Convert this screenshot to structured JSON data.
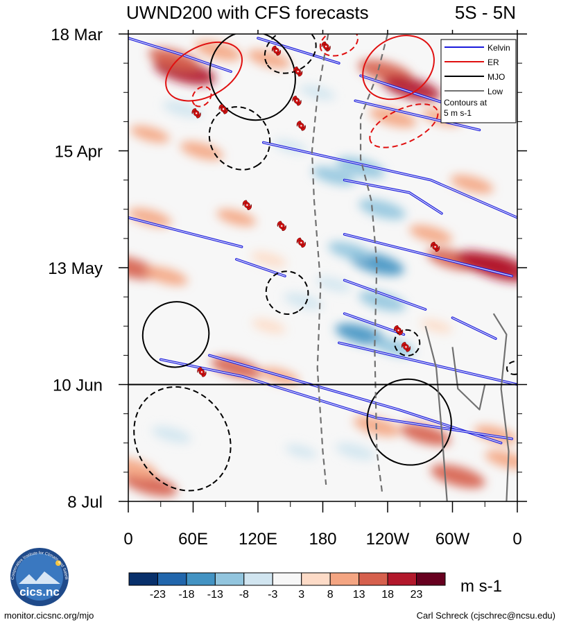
{
  "chart_data": {
    "type": "heatmap",
    "title": "UWND200 with CFS forecasts",
    "region": "5S - 5N",
    "x_ticks": [
      "0",
      "60E",
      "120E",
      "180",
      "120W",
      "60W",
      "0"
    ],
    "x_tick_lon": [
      0,
      60,
      120,
      180,
      240,
      300,
      360
    ],
    "xlim": [
      0,
      360
    ],
    "y_ticks": [
      "18 Mar",
      "15 Apr",
      "13 May",
      "10 Jun",
      "8 Jul"
    ],
    "y_tick_day": [
      0,
      28,
      56,
      84,
      112
    ],
    "ylim": [
      0,
      112
    ],
    "forecast_start_day": 84,
    "colorbar": {
      "units": "m s-1",
      "labels": [
        "-23",
        "-18",
        "-13",
        "-8",
        "-3",
        "3",
        "8",
        "13",
        "18",
        "23"
      ],
      "colors": [
        "#08306b",
        "#2166ac",
        "#4393c3",
        "#92c5de",
        "#d1e5f0",
        "#f7f7f7",
        "#fddbc7",
        "#f4a582",
        "#d6604d",
        "#b2182b",
        "#67001f"
      ]
    },
    "legend": {
      "position": "top-right",
      "entries": [
        {
          "name": "Kelvin",
          "color": "#1a1adb",
          "style": "solid"
        },
        {
          "name": "ER",
          "color": "#e01010",
          "style": "solid"
        },
        {
          "name": "MJO",
          "color": "#000000",
          "style": "solid"
        },
        {
          "name": "Low",
          "color": "#707070",
          "style": "solid"
        }
      ],
      "note": [
        "Contours at",
        "5 m s-1"
      ]
    },
    "anomaly_patches": [
      {
        "lon": 52,
        "day": 9,
        "value": 20
      },
      {
        "lon": 42,
        "day": 6,
        "value": 14
      },
      {
        "lon": 83,
        "day": 4,
        "value": 12
      },
      {
        "lon": 130,
        "day": 6,
        "value": 10
      },
      {
        "lon": 175,
        "day": 14,
        "value": -6
      },
      {
        "lon": 238,
        "day": 9,
        "value": 16
      },
      {
        "lon": 262,
        "day": 13,
        "value": 18
      },
      {
        "lon": 245,
        "day": 20,
        "value": 12
      },
      {
        "lon": 290,
        "day": 20,
        "value": 8
      },
      {
        "lon": 50,
        "day": 18,
        "value": -8
      },
      {
        "lon": 20,
        "day": 24,
        "value": 8
      },
      {
        "lon": 68,
        "day": 28,
        "value": 10
      },
      {
        "lon": 190,
        "day": 34,
        "value": -10
      },
      {
        "lon": 215,
        "day": 32,
        "value": -13
      },
      {
        "lon": 235,
        "day": 42,
        "value": -12
      },
      {
        "lon": 150,
        "day": 27,
        "value": -5
      },
      {
        "lon": 318,
        "day": 36,
        "value": 10
      },
      {
        "lon": 20,
        "day": 44,
        "value": 10
      },
      {
        "lon": 300,
        "day": 54,
        "value": 14
      },
      {
        "lon": 345,
        "day": 56,
        "value": 22
      },
      {
        "lon": 330,
        "day": 55,
        "value": 18
      },
      {
        "lon": 2,
        "day": 56,
        "value": 16
      },
      {
        "lon": 35,
        "day": 58,
        "value": 10
      },
      {
        "lon": 130,
        "day": 54,
        "value": 6
      },
      {
        "lon": 230,
        "day": 55,
        "value": -16
      },
      {
        "lon": 205,
        "day": 52,
        "value": -10
      },
      {
        "lon": 235,
        "day": 64,
        "value": -12
      },
      {
        "lon": 215,
        "day": 72,
        "value": -14
      },
      {
        "lon": 245,
        "day": 75,
        "value": -10
      },
      {
        "lon": 100,
        "day": 80,
        "value": 14
      },
      {
        "lon": 140,
        "day": 82,
        "value": 8
      },
      {
        "lon": 230,
        "day": 94,
        "value": 12
      },
      {
        "lon": 275,
        "day": 96,
        "value": 14
      },
      {
        "lon": 340,
        "day": 96,
        "value": 10
      },
      {
        "lon": 20,
        "day": 108,
        "value": 16
      },
      {
        "lon": 5,
        "day": 104,
        "value": 12
      },
      {
        "lon": 305,
        "day": 106,
        "value": 16
      },
      {
        "lon": 350,
        "day": 102,
        "value": 10
      },
      {
        "lon": 40,
        "day": 96,
        "value": -8
      },
      {
        "lon": 210,
        "day": 100,
        "value": -8
      },
      {
        "lon": 160,
        "day": 100,
        "value": -4
      },
      {
        "lon": 190,
        "day": 60,
        "value": -6
      },
      {
        "lon": 162,
        "day": 64,
        "value": -8
      },
      {
        "lon": 280,
        "day": 48,
        "value": 10
      },
      {
        "lon": 100,
        "day": 44,
        "value": 8
      },
      {
        "lon": 130,
        "day": 70,
        "value": 5
      },
      {
        "lon": 285,
        "day": 70,
        "value": 4
      }
    ],
    "kelvin_contours": [
      [
        [
          0,
          1
        ],
        [
          50,
          5
        ],
        [
          95,
          9
        ]
      ],
      [
        [
          120,
          1
        ],
        [
          195,
          7
        ]
      ],
      [
        [
          215,
          10
        ],
        [
          345,
          21
        ]
      ],
      [
        [
          210,
          16
        ],
        [
          325,
          23
        ]
      ],
      [
        [
          125,
          26
        ],
        [
          280,
          35
        ],
        [
          360,
          44
        ]
      ],
      [
        [
          200,
          35
        ],
        [
          260,
          38
        ],
        [
          290,
          43
        ]
      ],
      [
        [
          0,
          44
        ],
        [
          105,
          51
        ]
      ],
      [
        [
          200,
          48
        ],
        [
          355,
          58
        ]
      ],
      [
        [
          100,
          54
        ],
        [
          145,
          58
        ]
      ],
      [
        [
          200,
          59
        ],
        [
          275,
          66
        ]
      ],
      [
        [
          200,
          67
        ],
        [
          255,
          72
        ]
      ],
      [
        [
          195,
          74
        ],
        [
          360,
          84
        ]
      ],
      [
        [
          300,
          68
        ],
        [
          340,
          73
        ]
      ],
      [
        [
          75,
          77
        ],
        [
          250,
          90
        ],
        [
          345,
          98
        ]
      ],
      [
        [
          30,
          78
        ],
        [
          105,
          82
        ],
        [
          230,
          92
        ],
        [
          355,
          97
        ]
      ]
    ],
    "er_contours": [
      {
        "cx": 70,
        "cy": 9,
        "rx": 38,
        "ry": 6,
        "angle_deg": 152,
        "dashed": false
      },
      {
        "cx": 250,
        "cy": 8,
        "rx": 35,
        "ry": 7,
        "angle_deg": 148,
        "dashed": false
      },
      {
        "cx": 195,
        "cy": 2,
        "rx": 18,
        "ry": 3,
        "angle_deg": 160,
        "dashed": true
      },
      {
        "cx": 255,
        "cy": 22,
        "rx": 34,
        "ry": 4,
        "angle_deg": 155,
        "dashed": true
      },
      {
        "cx": 68,
        "cy": 15,
        "rx": 10,
        "ry": 2,
        "angle_deg": 130,
        "dashed": true
      }
    ],
    "mjo_contours": [
      {
        "cx": 115,
        "cy": 10,
        "rx": 42,
        "ry": 10,
        "angle_deg": 58,
        "dashed": false
      },
      {
        "cx": 103,
        "cy": 25,
        "rx": 30,
        "ry": 7,
        "angle_deg": 55,
        "dashed": true
      },
      {
        "cx": 150,
        "cy": 4,
        "rx": 25,
        "ry": 5,
        "angle_deg": 150,
        "dashed": true
      },
      {
        "cx": 147,
        "cy": 62,
        "rx": 20,
        "ry": 5,
        "angle_deg": 60,
        "dashed": true
      },
      {
        "cx": 44,
        "cy": 72,
        "rx": 30,
        "ry": 8,
        "angle_deg": 58,
        "dashed": false
      },
      {
        "cx": 50,
        "cy": 97,
        "rx": 50,
        "ry": 11,
        "angle_deg": 58,
        "dashed": true
      },
      {
        "cx": 260,
        "cy": 93,
        "rx": 40,
        "ry": 10,
        "angle_deg": 62,
        "dashed": false
      },
      {
        "cx": 258,
        "cy": 74,
        "rx": 12,
        "ry": 3,
        "angle_deg": 60,
        "dashed": true
      },
      {
        "cx": 358,
        "cy": 80,
        "rx": 6,
        "ry": 2,
        "angle_deg": 80,
        "dashed": true
      }
    ],
    "low_contours": [
      {
        "points": [
          [
            185,
            0
          ],
          [
            175,
            15
          ],
          [
            170,
            28
          ],
          [
            172,
            40
          ],
          [
            178,
            60
          ],
          [
            175,
            80
          ],
          [
            180,
            100
          ],
          [
            183,
            108
          ]
        ],
        "dashed": true
      },
      {
        "points": [
          [
            240,
            0
          ],
          [
            230,
            10
          ],
          [
            215,
            20
          ],
          [
            215,
            30
          ],
          [
            225,
            40
          ],
          [
            230,
            55
          ],
          [
            228,
            75
          ],
          [
            230,
            100
          ],
          [
            235,
            110
          ]
        ],
        "dashed": true
      },
      {
        "points": [
          [
            275,
            70
          ],
          [
            285,
            80
          ],
          [
            290,
            95
          ],
          [
            295,
            112
          ]
        ],
        "dashed": false
      },
      {
        "points": [
          [
            300,
            75
          ],
          [
            305,
            85
          ],
          [
            325,
            90
          ],
          [
            330,
            84
          ]
        ],
        "dashed": false
      },
      {
        "points": [
          [
            338,
            67
          ],
          [
            350,
            72
          ],
          [
            345,
            85
          ],
          [
            352,
            100
          ],
          [
            350,
            112
          ]
        ],
        "dashed": false
      }
    ],
    "tropical_cyclones": [
      {
        "lon": 137,
        "day": 4
      },
      {
        "lon": 183,
        "day": 3
      },
      {
        "lon": 157,
        "day": 9
      },
      {
        "lon": 156,
        "day": 16
      },
      {
        "lon": 88,
        "day": 18
      },
      {
        "lon": 63,
        "day": 19
      },
      {
        "lon": 160,
        "day": 22
      },
      {
        "lon": 110,
        "day": 41
      },
      {
        "lon": 142,
        "day": 46
      },
      {
        "lon": 160,
        "day": 50
      },
      {
        "lon": 284,
        "day": 51
      },
      {
        "lon": 250,
        "day": 71
      },
      {
        "lon": 257,
        "day": 75
      },
      {
        "lon": 68,
        "day": 81
      }
    ]
  },
  "footer": {
    "left": "monitor.cicsnc.org/mjo",
    "right": "Carl Schreck (cjschrec@ncsu.edu)"
  },
  "logo": {
    "text": "cics.nc",
    "arc_text": "Cooperative Institute for Climate and Satellites"
  }
}
